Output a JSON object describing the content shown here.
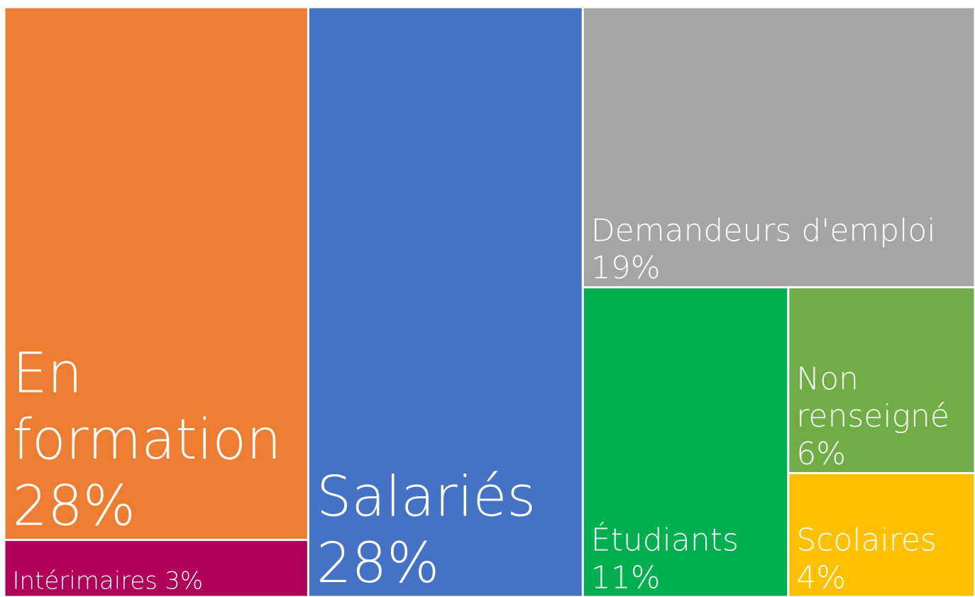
{
  "chart_data": {
    "type": "treemap",
    "categories": [
      "En formation",
      "Intérimaires",
      "Salariés",
      "Demandeurs d'emploi",
      "Étudiants",
      "Non renseigné",
      "Scolaires"
    ],
    "values": [
      28,
      3,
      28,
      19,
      11,
      6,
      4
    ],
    "value_labels": [
      "28%",
      "3%",
      "28%",
      "19%",
      "11%",
      "6%",
      "4%"
    ],
    "colors": [
      "#ed7d31",
      "#b0005a",
      "#4472c4",
      "#a5a5a5",
      "#00b050",
      "#70ad47",
      "#ffc000"
    ]
  }
}
